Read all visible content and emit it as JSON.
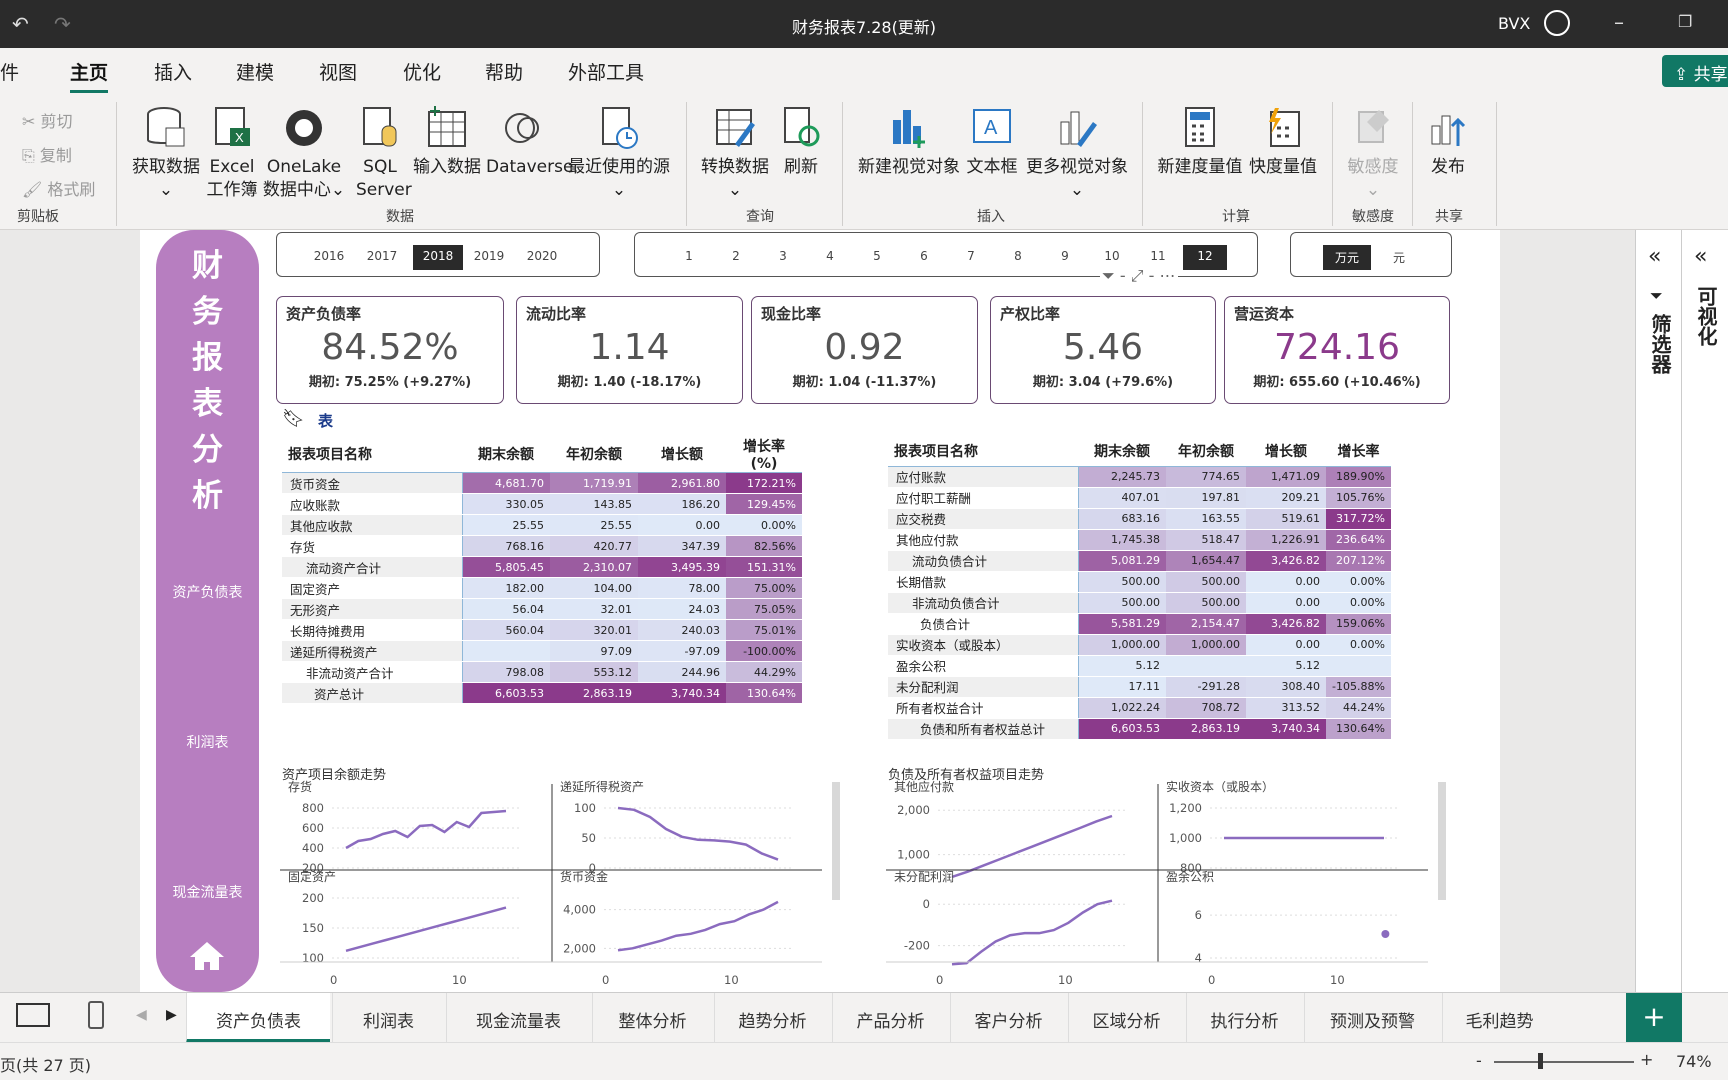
{
  "window": {
    "title": "财务报表7.28(更新)",
    "user": "BVX"
  },
  "menu": {
    "items": [
      "件",
      "主页",
      "插入",
      "建模",
      "视图",
      "优化",
      "帮助",
      "外部工具"
    ],
    "share": "共享"
  },
  "ribbon": {
    "clipboard": {
      "cut": "剪切",
      "copy": "复制",
      "format": "格式刷",
      "group": "剪贴板"
    },
    "data": {
      "get": "获取数据",
      "excel1": "Excel",
      "excel2": "工作簿",
      "onelake1": "OneLake",
      "onelake2": "数据中心",
      "sql1": "SQL",
      "sql2": "Server",
      "input": "输入数据",
      "dataverse": "Dataverse",
      "recent": "最近使用的源",
      "group": "数据"
    },
    "query": {
      "transform": "转换数据",
      "refresh": "刷新",
      "group": "查询"
    },
    "insert": {
      "newvisual": "新建视觉对象",
      "textbox": "文本框",
      "morevisuals": "更多视觉对象",
      "group": "插入"
    },
    "calc": {
      "newmeasure": "新建度量值",
      "quickmeasure": "快度量值",
      "group": "计算"
    },
    "sens": {
      "label": "敏感度",
      "group": "敏感度"
    },
    "share": {
      "publish": "发布",
      "group": "共享"
    }
  },
  "sidebar": {
    "title": [
      "财",
      "务",
      "报",
      "表",
      "分",
      "析"
    ],
    "nav": [
      "资产负债表",
      "利润表",
      "现金流量表"
    ]
  },
  "slicers": {
    "years": [
      "2016",
      "2017",
      "2018",
      "2019",
      "2020"
    ],
    "selected_year": "2018",
    "months": [
      "1",
      "2",
      "3",
      "4",
      "5",
      "6",
      "7",
      "8",
      "9",
      "10",
      "11",
      "12"
    ],
    "selected_month": "12",
    "units": [
      "万元",
      "元"
    ],
    "selected_unit": "万元"
  },
  "kpis": [
    {
      "title": "资产负债率",
      "value": "84.52%",
      "sub": "期初: 75.25% (+9.27%)"
    },
    {
      "title": "流动比率",
      "value": "1.14",
      "sub": "期初: 1.40 (-18.17%)"
    },
    {
      "title": "现金比率",
      "value": "0.92",
      "sub": "期初: 1.04 (-11.37%)"
    },
    {
      "title": "产权比率",
      "value": "5.46",
      "sub": "期初: 3.04 (+79.6%)"
    },
    {
      "title": "营运资本",
      "value": "724.16",
      "sub": "期初: 655.60 (+10.46%)"
    }
  ],
  "table_label": "表",
  "asset_table": {
    "headers": [
      "报表项目名称",
      "期末余额",
      "年初余额",
      "增长额",
      "增长率(%)"
    ],
    "rows": [
      [
        "货币资金",
        "4,681.70",
        "1,719.91",
        "2,961.80",
        "172.21%"
      ],
      [
        "应收账款",
        "330.05",
        "143.85",
        "186.20",
        "129.45%"
      ],
      [
        "其他应收款",
        "25.55",
        "25.55",
        "0.00",
        "0.00%"
      ],
      [
        "存货",
        "768.16",
        "420.77",
        "347.39",
        "82.56%"
      ],
      [
        "流动资产合计",
        "5,805.45",
        "2,310.07",
        "3,495.39",
        "151.31%"
      ],
      [
        "固定资产",
        "182.00",
        "104.00",
        "78.00",
        "75.00%"
      ],
      [
        "无形资产",
        "56.04",
        "32.01",
        "24.03",
        "75.05%"
      ],
      [
        "长期待摊费用",
        "560.04",
        "320.01",
        "240.03",
        "75.01%"
      ],
      [
        "递延所得税资产",
        "",
        "97.09",
        "-97.09",
        "-100.00%"
      ],
      [
        "非流动资产合计",
        "798.08",
        "553.12",
        "244.96",
        "44.29%"
      ],
      [
        "资产总计",
        "6,603.53",
        "2,863.19",
        "3,740.34",
        "130.64%"
      ]
    ]
  },
  "liab_table": {
    "headers": [
      "报表项目名称",
      "期末余额",
      "年初余额",
      "增长额",
      "增长率"
    ],
    "rows": [
      [
        "应付账款",
        "2,245.73",
        "774.65",
        "1,471.09",
        "189.90%"
      ],
      [
        "应付职工薪酬",
        "407.01",
        "197.81",
        "209.21",
        "105.76%"
      ],
      [
        "应交税费",
        "683.16",
        "163.55",
        "519.61",
        "317.72%"
      ],
      [
        "其他应付款",
        "1,745.38",
        "518.47",
        "1,226.91",
        "236.64%"
      ],
      [
        "流动负债合计",
        "5,081.29",
        "1,654.47",
        "3,426.82",
        "207.12%"
      ],
      [
        "长期借款",
        "500.00",
        "500.00",
        "0.00",
        "0.00%"
      ],
      [
        "非流动负债合计",
        "500.00",
        "500.00",
        "0.00",
        "0.00%"
      ],
      [
        "负债合计",
        "5,581.29",
        "2,154.47",
        "3,426.82",
        "159.06%"
      ],
      [
        "实收资本（或股本）",
        "1,000.00",
        "1,000.00",
        "0.00",
        "0.00%"
      ],
      [
        "盈余公积",
        "5.12",
        "",
        "5.12",
        ""
      ],
      [
        "未分配利润",
        "17.11",
        "-291.28",
        "308.40",
        "-105.88%"
      ],
      [
        "所有者权益合计",
        "1,022.24",
        "708.72",
        "313.52",
        "44.24%"
      ],
      [
        "负债和所有者权益总计",
        "6,603.53",
        "2,863.19",
        "3,740.34",
        "130.64%"
      ]
    ]
  },
  "trends": {
    "asset_title": "资产项目余额走势",
    "liab_title": "负债及所有者权益项目走势",
    "charts": [
      {
        "label": "存货",
        "ticks": [
          "800",
          "600",
          "400",
          "200"
        ],
        "xticks": [],
        "vals": [
          400,
          470,
          490,
          540,
          570,
          510,
          620,
          630,
          560,
          660,
          610,
          750,
          760,
          770
        ]
      },
      {
        "label": "递延所得税资产",
        "ticks": [
          "100",
          "50",
          "0"
        ],
        "xticks": [],
        "vals": [
          100,
          97,
          85,
          65,
          52,
          47,
          46,
          44,
          39,
          24,
          14
        ]
      },
      {
        "label": "固定资产",
        "ticks": [
          "200",
          "150",
          "100"
        ],
        "xticks": [
          "0",
          "10"
        ],
        "vals": [
          112,
          118,
          124,
          130,
          136,
          142,
          148,
          154,
          160,
          166,
          172,
          178,
          184
        ]
      },
      {
        "label": "货币资金",
        "ticks": [
          "4,000",
          "2,000"
        ],
        "xticks": [
          "0",
          "10"
        ],
        "vals": [
          1900,
          2000,
          2200,
          2400,
          2650,
          2750,
          2950,
          3250,
          3400,
          3750,
          4000,
          4400
        ]
      },
      {
        "label": "其他应付款",
        "ticks": [
          "2,000",
          "1,000"
        ],
        "xticks": [],
        "vals": [
          500,
          620,
          760,
          900,
          1040,
          1180,
          1320,
          1460,
          1600,
          1745,
          1870
        ]
      },
      {
        "label": "实收资本（或股本）",
        "ticks": [
          "1,200",
          "1,000",
          "800"
        ],
        "xticks": [],
        "vals": [
          1000,
          1000,
          1000,
          1000,
          1000,
          1000,
          1000,
          1000,
          1000,
          1000,
          1000,
          1000
        ]
      },
      {
        "label": "未分配利润",
        "ticks": [
          "0",
          "-200"
        ],
        "xticks": [
          "0",
          "10"
        ],
        "vals": [
          -290,
          -285,
          -230,
          -180,
          -150,
          -140,
          -140,
          -125,
          -90,
          -40,
          0,
          17
        ]
      },
      {
        "label": "盈余公积",
        "ticks": [
          "6",
          "4"
        ],
        "xticks": [
          "0",
          "10"
        ],
        "vals": [
          5.12
        ]
      }
    ]
  },
  "tabs": [
    "资产负债表",
    "利润表",
    "现金流量表",
    "整体分析",
    "趋势分析",
    "产品分析",
    "客户分析",
    "区域分析",
    "执行分析",
    "预测及预警",
    "毛利趋势"
  ],
  "status": {
    "page": "页(共 27 页)",
    "zoom": "74%"
  },
  "panes": {
    "viz": "可视化",
    "filter": "筛选器"
  },
  "colors": {
    "accent": "#117865",
    "sidebar": "#b77ec0",
    "kpi_value_highlight": "#8b3a8b"
  }
}
